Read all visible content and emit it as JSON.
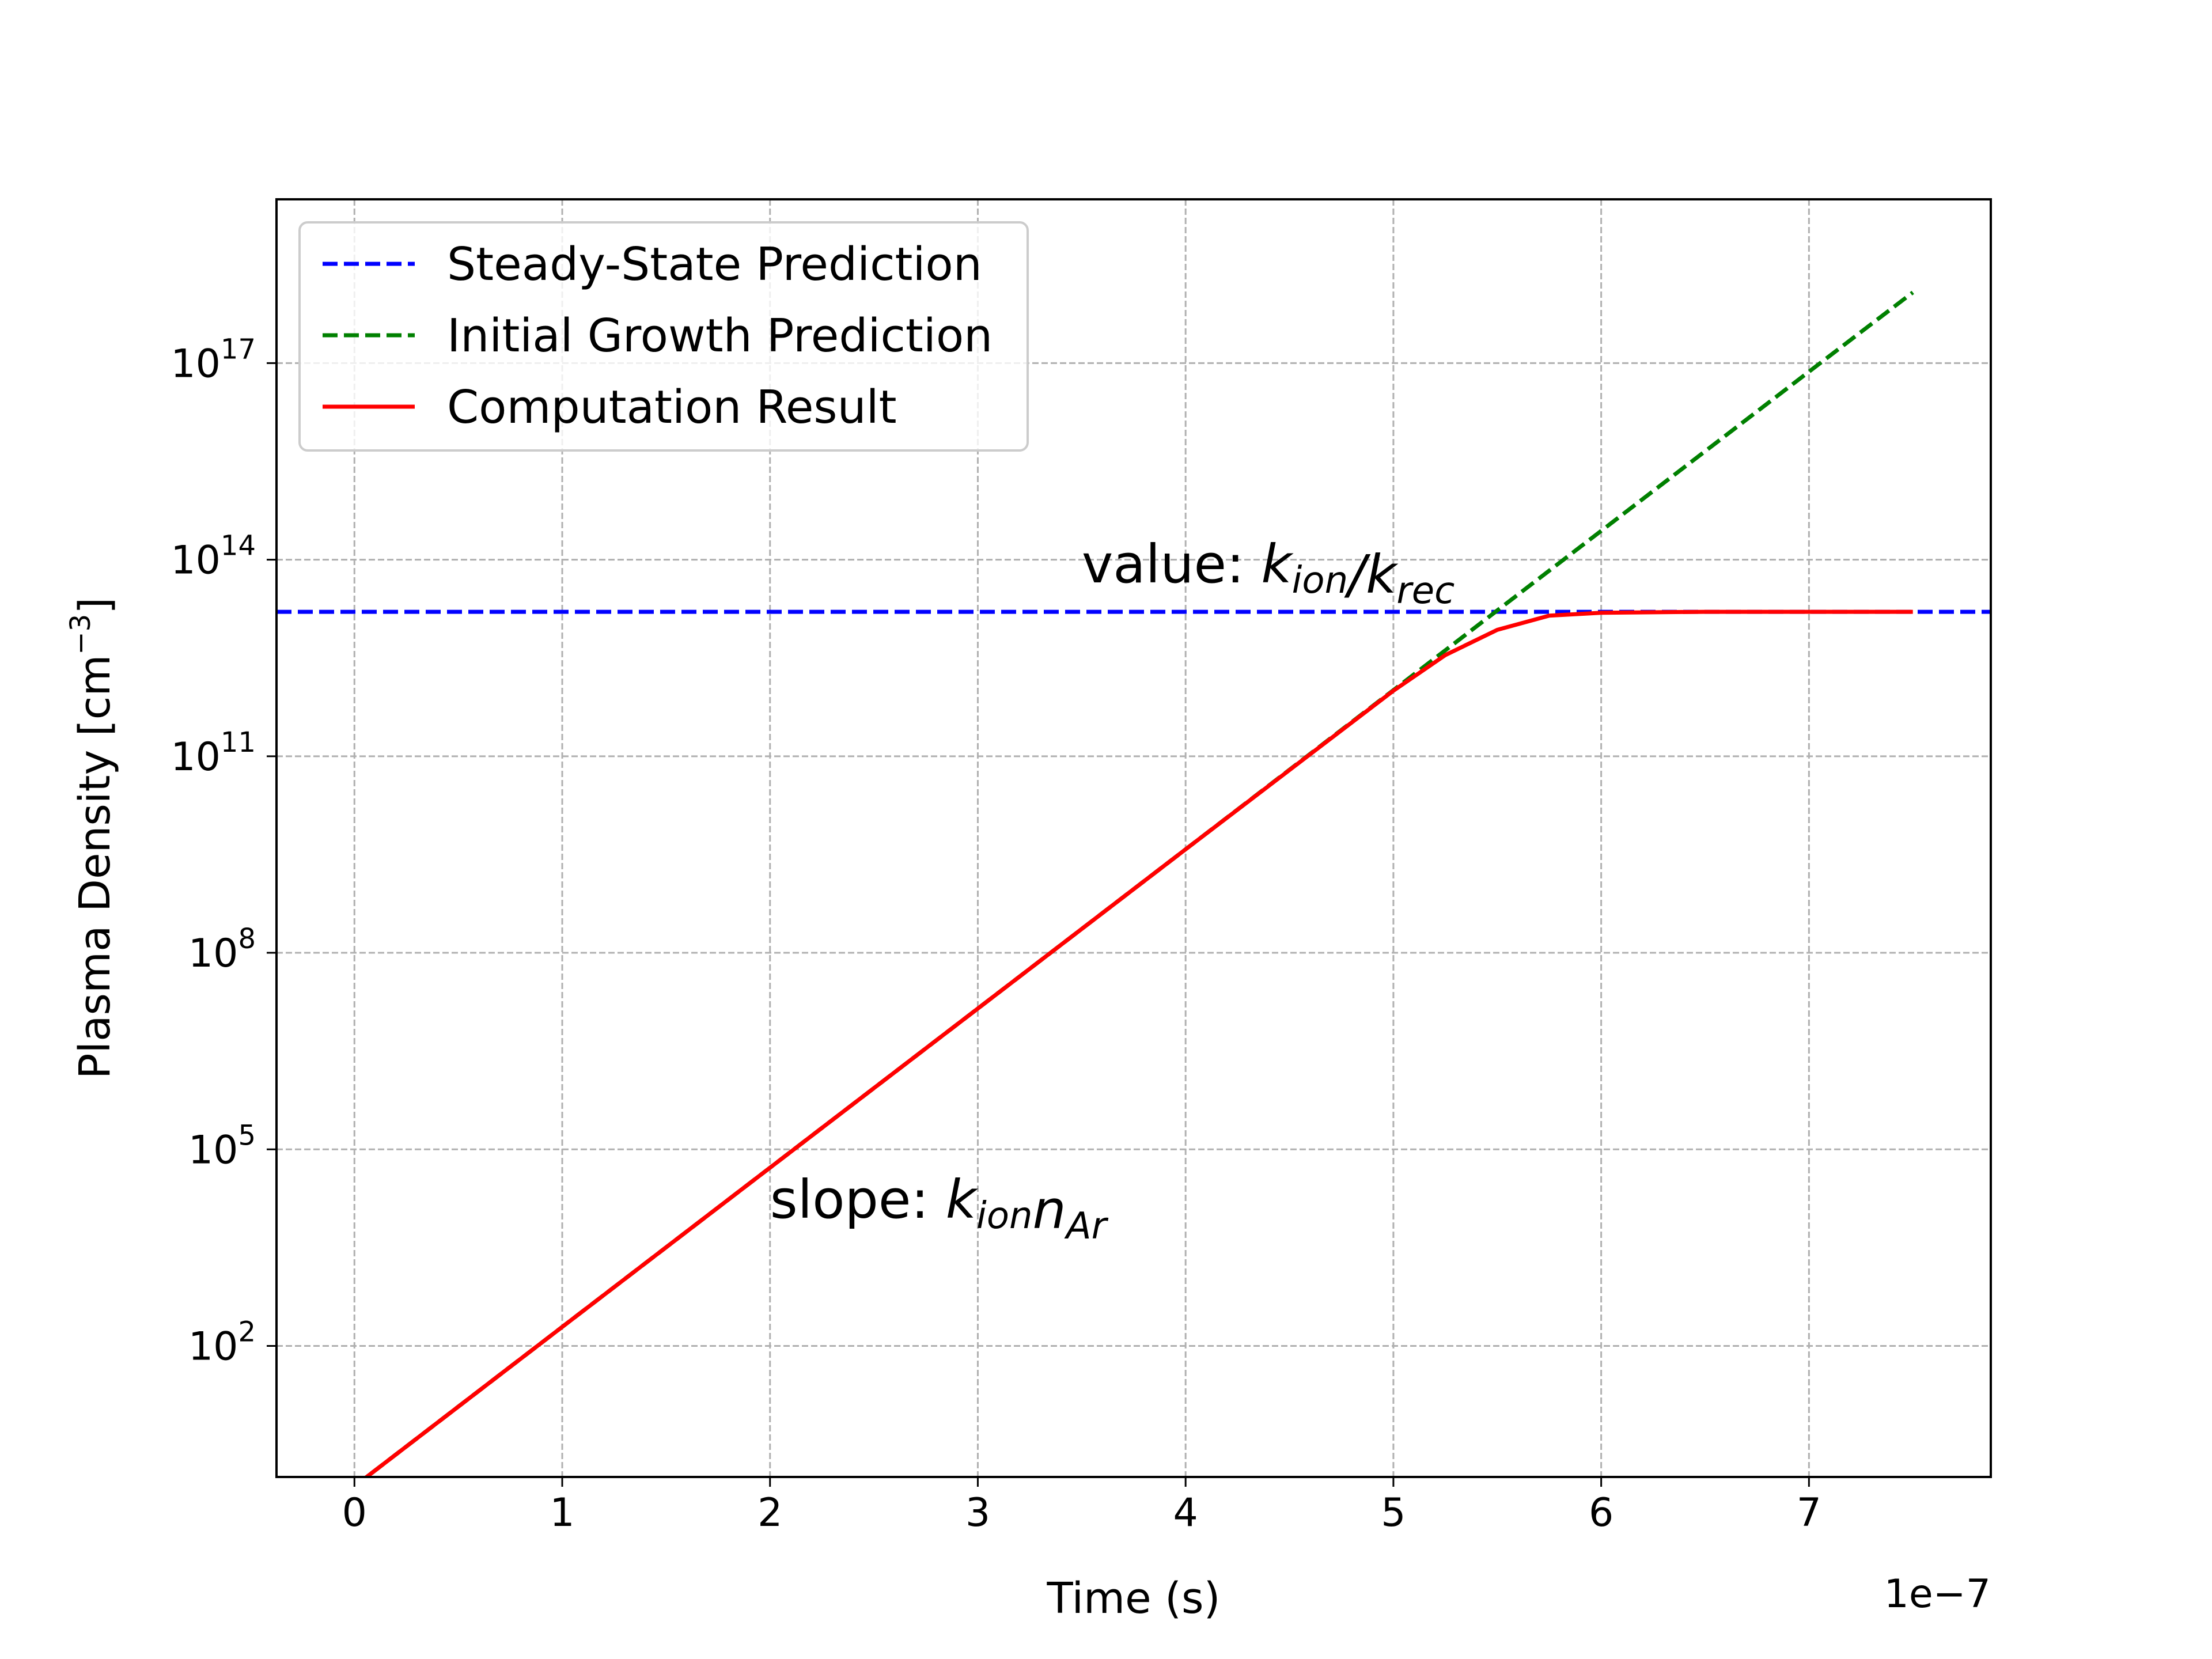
{
  "chart_data": {
    "type": "line",
    "xlabel": "Time (s)",
    "ylabel": "Plasma Density [cm",
    "ylabel_unit_exponent": "−3",
    "ylabel_close": "]",
    "x_offset_label": "1e−7",
    "x_scale_factor": 1e-07,
    "y_scale": "log",
    "xlim": [
      -0.375,
      7.875
    ],
    "ylim_log10": [
      0,
      19.5
    ],
    "grid": true,
    "legend_position": "upper left",
    "x_ticks": [
      {
        "value": 0,
        "label": "0"
      },
      {
        "value": 1,
        "label": "1"
      },
      {
        "value": 2,
        "label": "2"
      },
      {
        "value": 3,
        "label": "3"
      },
      {
        "value": 4,
        "label": "4"
      },
      {
        "value": 5,
        "label": "5"
      },
      {
        "value": 6,
        "label": "6"
      },
      {
        "value": 7,
        "label": "7"
      }
    ],
    "y_ticks": [
      {
        "log10": 2,
        "base": "10",
        "exp": "2"
      },
      {
        "log10": 5,
        "base": "10",
        "exp": "5"
      },
      {
        "log10": 8,
        "base": "10",
        "exp": "8"
      },
      {
        "log10": 11,
        "base": "10",
        "exp": "11"
      },
      {
        "log10": 14,
        "base": "10",
        "exp": "14"
      },
      {
        "log10": 17,
        "base": "10",
        "exp": "17"
      }
    ],
    "series": [
      {
        "name": "Steady-State Prediction",
        "color": "#0000ff",
        "style": "dashed",
        "x": [
          -0.375,
          7.875
        ],
        "y": [
          16000000000000.0,
          16000000000000.0
        ]
      },
      {
        "name": "Initial Growth Prediction",
        "color": "#008000",
        "style": "dashed",
        "x": [
          0,
          1,
          2,
          3,
          4,
          5,
          5.5,
          6,
          6.5,
          7,
          7.5
        ],
        "y": [
          0.72,
          195.0,
          52500.0,
          14100000.0,
          3800000000.0,
          1020000000000.0,
          16800000000000.0,
          275000000000000.0,
          4510000000000000.0,
          7.41e+16,
          1.2e+18
        ]
      },
      {
        "name": "Computation Result",
        "color": "#ff0000",
        "style": "solid",
        "x": [
          0,
          1,
          2,
          3,
          4,
          5,
          5.25,
          5.5,
          5.75,
          6,
          6.5,
          7,
          7.5
        ],
        "y": [
          0.72,
          195.0,
          52500.0,
          14100000.0,
          3800000000.0,
          1000000000000.0,
          3500000000000.0,
          8500000000000.0,
          14000000000000.0,
          15500000000000.0,
          16000000000000.0,
          16000000000000.0,
          16000000000000.0
        ]
      }
    ],
    "annotations": [
      {
        "prefix": "value: ",
        "math": "k_ion/k_rec",
        "x": 3.5,
        "y": 45000000000000.0
      },
      {
        "prefix": "slope: ",
        "math": "k_ion n_Ar",
        "x": 2.0,
        "y": 9000.0
      }
    ]
  }
}
